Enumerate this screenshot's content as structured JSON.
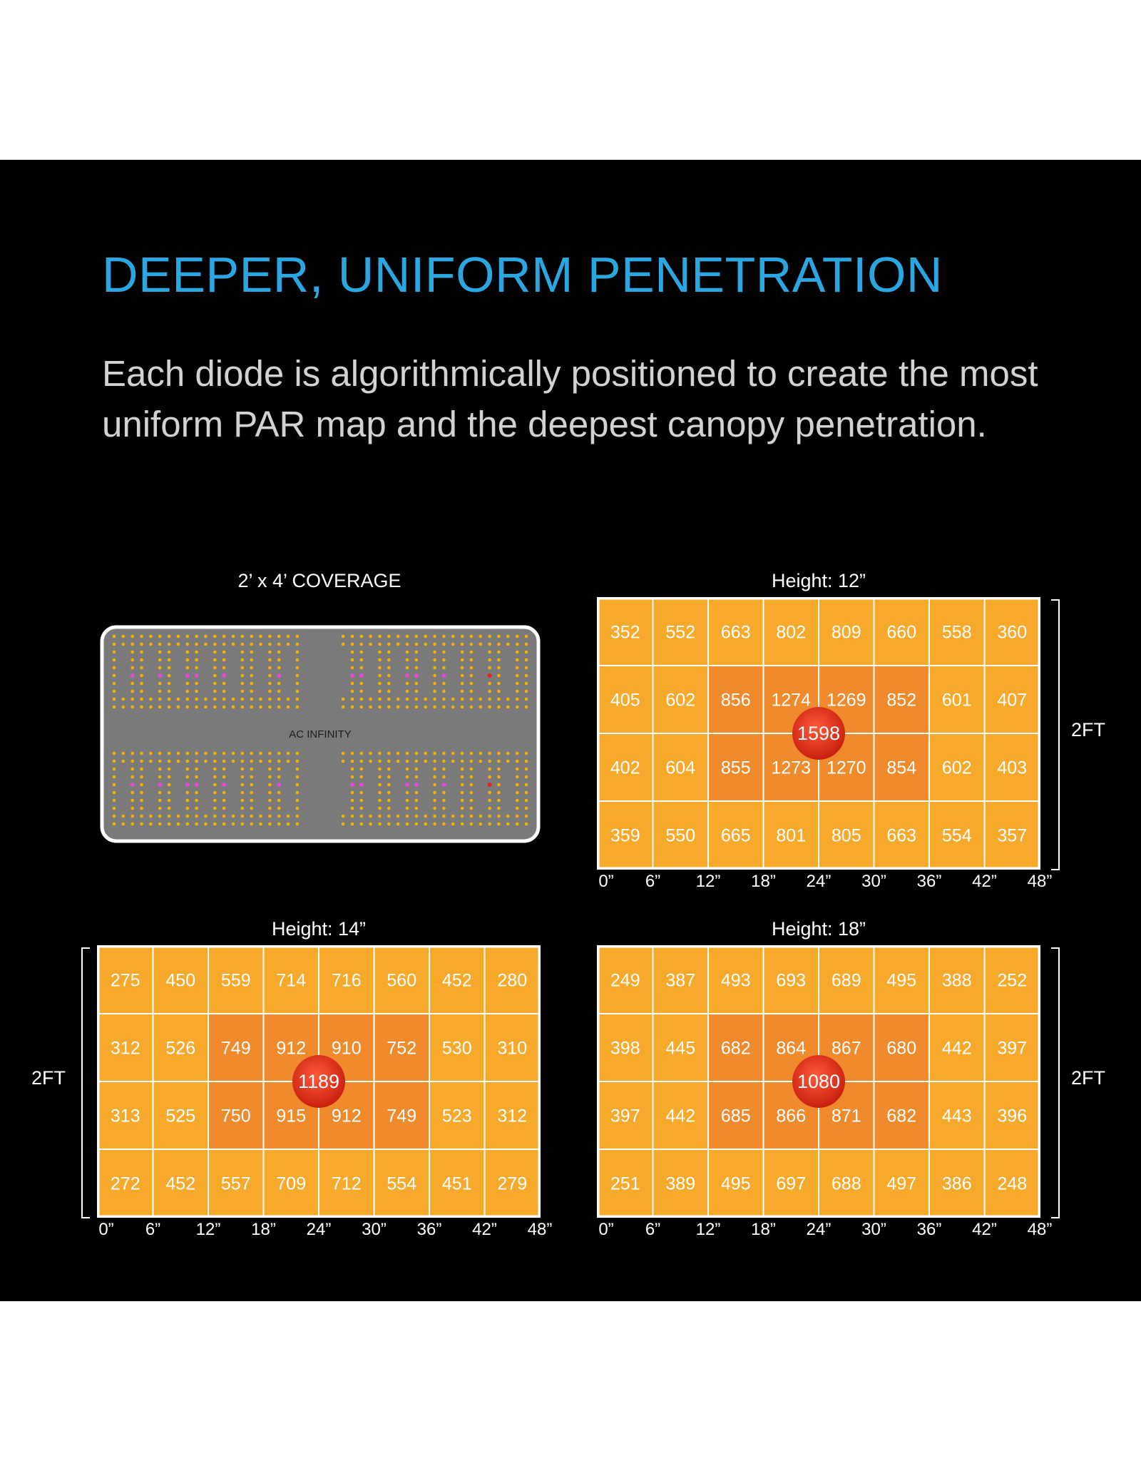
{
  "headline": "DEEPER, UNIFORM PENETRATION",
  "body_text": "Each diode is algorithmically positioned to create the most uniform PAR map and the deepest canopy penetration.",
  "coverage": {
    "title": "2’ x 4’ COVERAGE",
    "brand": "AC INFINITY"
  },
  "colors": {
    "accent": "#2aa6e0",
    "cell_light": "#f7a92c",
    "cell_dark": "#ef8b2c",
    "hotspot": "#e8321d",
    "led_warm": "#f5b300",
    "led_pink": "#e24bd6",
    "led_red": "#e02424",
    "panel_gray": "#7a7a7a"
  },
  "chart_data": [
    {
      "type": "heatmap",
      "title": "Height: 12”",
      "x_ticks": [
        "0”",
        "6”",
        "12”",
        "18”",
        "24”",
        "30”",
        "36”",
        "42”",
        "48”"
      ],
      "y_label": "2FT",
      "center_value": 1598,
      "values": [
        [
          352,
          552,
          663,
          802,
          809,
          660,
          558,
          360
        ],
        [
          405,
          602,
          856,
          1274,
          1269,
          852,
          601,
          407
        ],
        [
          402,
          604,
          855,
          1273,
          1270,
          854,
          602,
          403
        ],
        [
          359,
          550,
          665,
          801,
          805,
          663,
          554,
          357
        ]
      ]
    },
    {
      "type": "heatmap",
      "title": "Height: 14”",
      "x_ticks": [
        "0”",
        "6”",
        "12”",
        "18”",
        "24”",
        "30”",
        "36”",
        "42”",
        "48”"
      ],
      "y_label": "2FT",
      "center_value": 1189,
      "values": [
        [
          275,
          450,
          559,
          714,
          716,
          560,
          452,
          280
        ],
        [
          312,
          526,
          749,
          912,
          910,
          752,
          530,
          310
        ],
        [
          313,
          525,
          750,
          915,
          912,
          749,
          523,
          312
        ],
        [
          272,
          452,
          557,
          709,
          712,
          554,
          451,
          279
        ]
      ]
    },
    {
      "type": "heatmap",
      "title": "Height: 18”",
      "x_ticks": [
        "0”",
        "6”",
        "12”",
        "18”",
        "24”",
        "30”",
        "36”",
        "42”",
        "48”"
      ],
      "y_label": "2FT",
      "center_value": 1080,
      "values": [
        [
          249,
          387,
          493,
          693,
          689,
          495,
          388,
          252
        ],
        [
          398,
          445,
          682,
          864,
          867,
          680,
          442,
          397
        ],
        [
          397,
          442,
          685,
          866,
          871,
          682,
          443,
          396
        ],
        [
          251,
          389,
          495,
          697,
          688,
          497,
          386,
          248
        ]
      ]
    }
  ]
}
